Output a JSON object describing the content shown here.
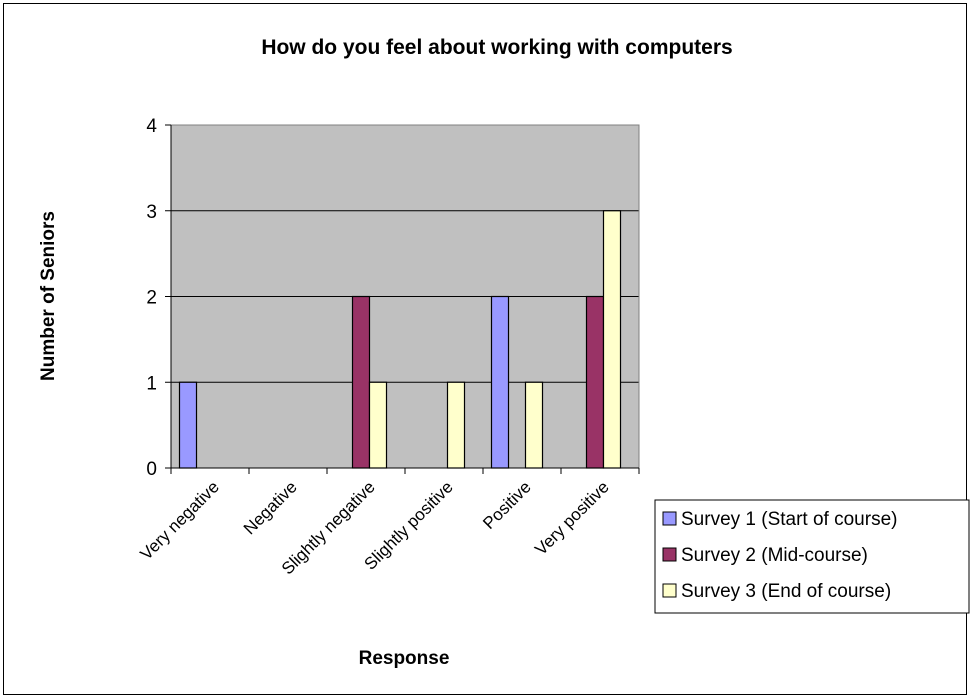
{
  "chart_data": {
    "type": "bar",
    "title": "How do you feel about working with computers",
    "xlabel": "Response",
    "ylabel": "Number of Seniors",
    "categories": [
      "Very negative",
      "Negative",
      "Slightly negative",
      "Slightly positive",
      "Positive",
      "Very positive"
    ],
    "series": [
      {
        "name": "Survey 1 (Start of course)",
        "values": [
          1,
          0,
          0,
          0,
          2,
          0
        ],
        "color": "#9999FF"
      },
      {
        "name": "Survey 2 (Mid-course)",
        "values": [
          0,
          0,
          2,
          0,
          0,
          2
        ],
        "color": "#993366"
      },
      {
        "name": "Survey 3 (End of course)",
        "values": [
          0,
          0,
          1,
          1,
          1,
          3
        ],
        "color": "#FFFFCC"
      }
    ],
    "ylim": [
      0,
      4
    ],
    "yticks": [
      "0",
      "1",
      "2",
      "3",
      "4"
    ],
    "grid": true,
    "plot_background": "#C0C0C0",
    "legend_position": "right"
  }
}
